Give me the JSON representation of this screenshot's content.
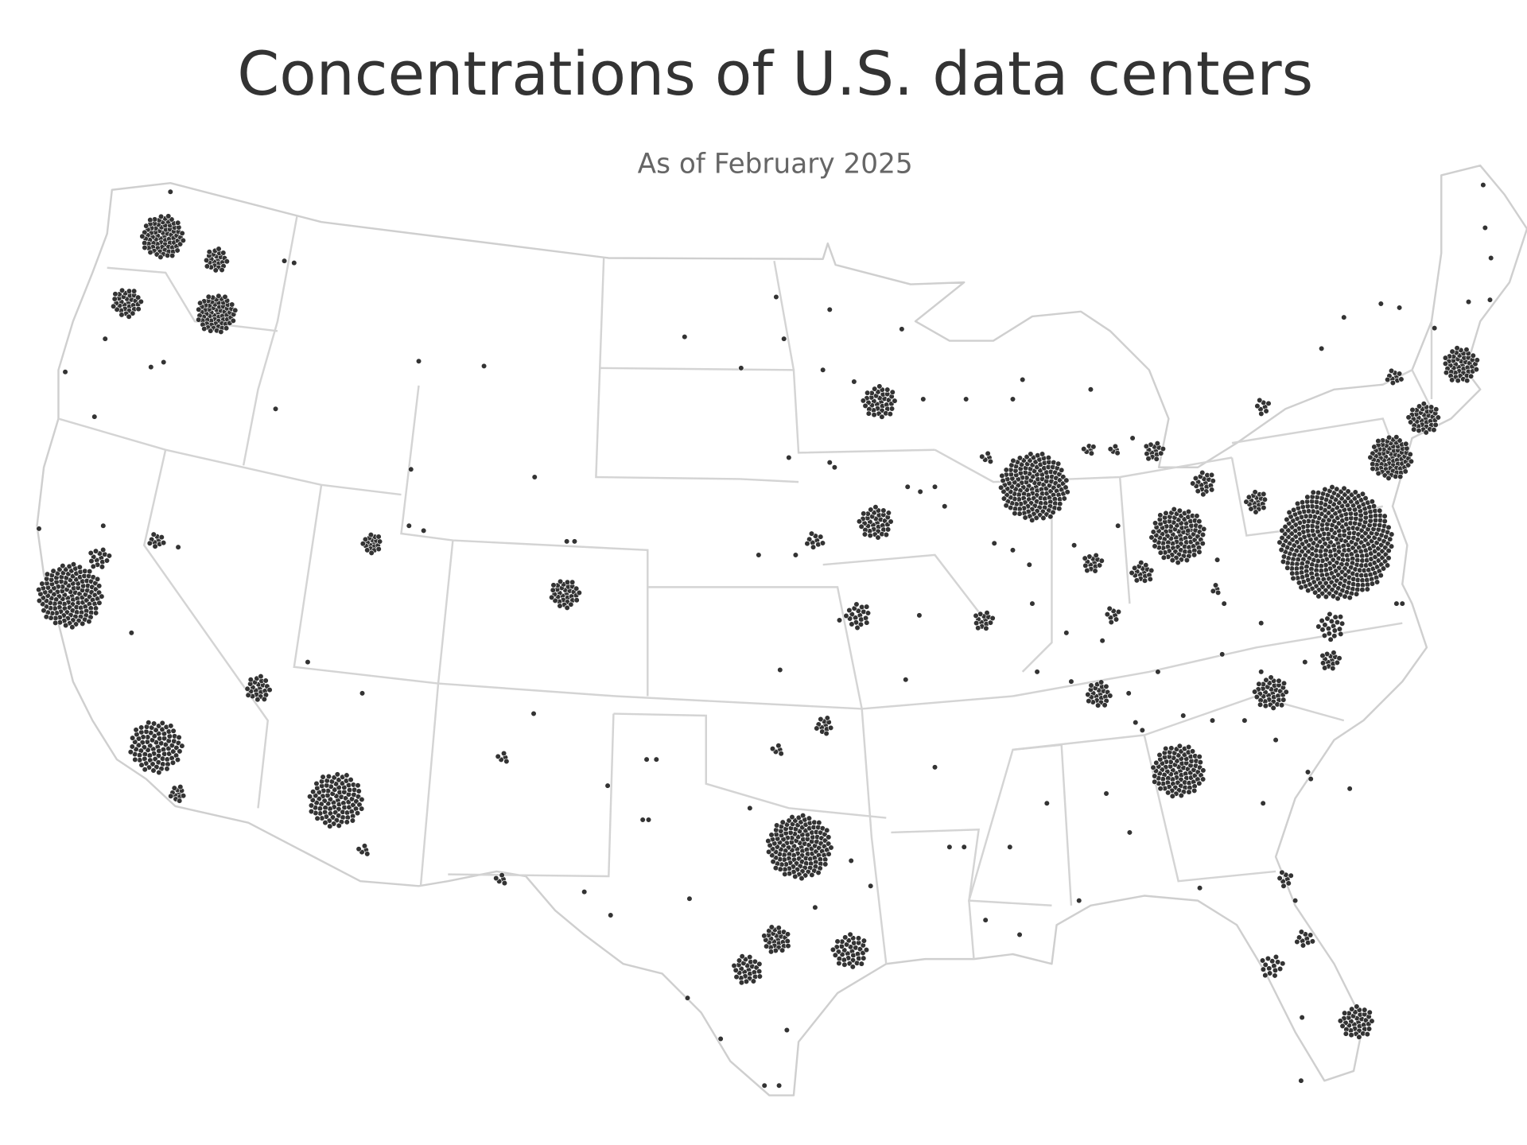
{
  "title": "Concentrations of U.S. data centers",
  "subtitle": "As of February 2025"
}
